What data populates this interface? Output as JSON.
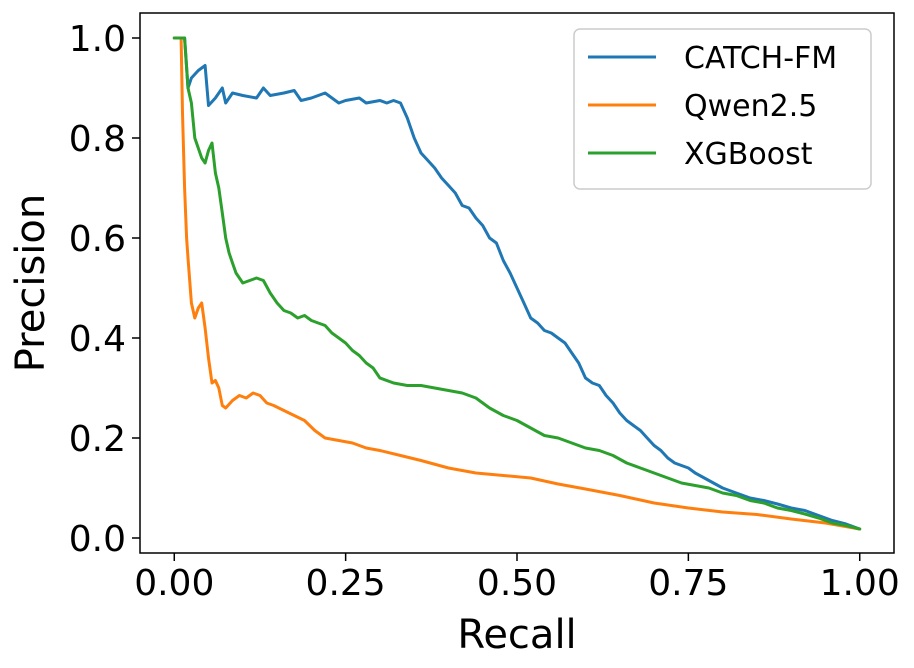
{
  "chart_data": {
    "type": "line",
    "xlabel": "Recall",
    "ylabel": "Precision",
    "xlim": [
      -0.05,
      1.05
    ],
    "ylim": [
      -0.03,
      1.05
    ],
    "xticks": [
      0.0,
      0.25,
      0.5,
      0.75,
      1.0
    ],
    "xtick_labels": [
      "0.00",
      "0.25",
      "0.50",
      "0.75",
      "1.00"
    ],
    "yticks": [
      0.0,
      0.2,
      0.4,
      0.6,
      0.8,
      1.0
    ],
    "ytick_labels": [
      "0.0",
      "0.2",
      "0.4",
      "0.6",
      "0.8",
      "1.0"
    ],
    "grid": false,
    "legend_position": "top-right",
    "series": [
      {
        "name": "CATCH-FM",
        "color": "#1f77b4",
        "x": [
          0.0,
          0.01,
          0.015,
          0.02,
          0.025,
          0.035,
          0.045,
          0.05,
          0.06,
          0.07,
          0.075,
          0.085,
          0.1,
          0.12,
          0.13,
          0.14,
          0.16,
          0.175,
          0.185,
          0.2,
          0.22,
          0.24,
          0.25,
          0.27,
          0.28,
          0.3,
          0.31,
          0.32,
          0.33,
          0.34,
          0.35,
          0.36,
          0.37,
          0.38,
          0.39,
          0.4,
          0.41,
          0.42,
          0.43,
          0.44,
          0.45,
          0.46,
          0.47,
          0.48,
          0.49,
          0.5,
          0.51,
          0.52,
          0.53,
          0.54,
          0.55,
          0.56,
          0.57,
          0.58,
          0.59,
          0.6,
          0.61,
          0.62,
          0.63,
          0.64,
          0.65,
          0.66,
          0.67,
          0.68,
          0.69,
          0.7,
          0.71,
          0.72,
          0.73,
          0.74,
          0.75,
          0.76,
          0.78,
          0.8,
          0.82,
          0.84,
          0.86,
          0.88,
          0.9,
          0.92,
          0.94,
          0.96,
          0.98,
          1.0
        ],
        "y": [
          1.0,
          1.0,
          1.0,
          0.9,
          0.92,
          0.935,
          0.945,
          0.865,
          0.88,
          0.9,
          0.87,
          0.89,
          0.885,
          0.88,
          0.9,
          0.885,
          0.89,
          0.895,
          0.875,
          0.88,
          0.89,
          0.87,
          0.875,
          0.88,
          0.87,
          0.875,
          0.87,
          0.875,
          0.87,
          0.84,
          0.8,
          0.77,
          0.755,
          0.74,
          0.72,
          0.705,
          0.69,
          0.665,
          0.66,
          0.64,
          0.625,
          0.6,
          0.59,
          0.555,
          0.53,
          0.5,
          0.47,
          0.44,
          0.43,
          0.415,
          0.41,
          0.4,
          0.39,
          0.37,
          0.35,
          0.32,
          0.31,
          0.305,
          0.285,
          0.27,
          0.25,
          0.235,
          0.225,
          0.215,
          0.2,
          0.185,
          0.175,
          0.16,
          0.15,
          0.145,
          0.14,
          0.13,
          0.115,
          0.1,
          0.09,
          0.08,
          0.075,
          0.068,
          0.06,
          0.055,
          0.045,
          0.035,
          0.028,
          0.018
        ]
      },
      {
        "name": "Qwen2.5",
        "color": "#ff7f0e",
        "x": [
          0.0,
          0.01,
          0.012,
          0.015,
          0.018,
          0.02,
          0.025,
          0.03,
          0.035,
          0.04,
          0.045,
          0.05,
          0.055,
          0.06,
          0.065,
          0.07,
          0.075,
          0.085,
          0.095,
          0.105,
          0.115,
          0.125,
          0.135,
          0.145,
          0.16,
          0.175,
          0.19,
          0.205,
          0.22,
          0.24,
          0.26,
          0.28,
          0.3,
          0.33,
          0.36,
          0.4,
          0.44,
          0.48,
          0.52,
          0.56,
          0.6,
          0.65,
          0.7,
          0.75,
          0.8,
          0.85,
          0.9,
          0.95,
          1.0
        ],
        "y": [
          1.0,
          1.0,
          0.85,
          0.7,
          0.6,
          0.56,
          0.47,
          0.44,
          0.46,
          0.47,
          0.42,
          0.36,
          0.31,
          0.315,
          0.3,
          0.265,
          0.26,
          0.275,
          0.285,
          0.28,
          0.29,
          0.285,
          0.27,
          0.265,
          0.255,
          0.245,
          0.235,
          0.215,
          0.2,
          0.195,
          0.19,
          0.18,
          0.175,
          0.165,
          0.155,
          0.14,
          0.13,
          0.125,
          0.12,
          0.108,
          0.098,
          0.085,
          0.07,
          0.06,
          0.052,
          0.047,
          0.038,
          0.03,
          0.018
        ]
      },
      {
        "name": "XGBoost",
        "color": "#2ca02c",
        "x": [
          0.0,
          0.01,
          0.015,
          0.02,
          0.025,
          0.03,
          0.04,
          0.045,
          0.05,
          0.055,
          0.06,
          0.065,
          0.07,
          0.075,
          0.08,
          0.085,
          0.09,
          0.1,
          0.11,
          0.12,
          0.13,
          0.14,
          0.15,
          0.16,
          0.17,
          0.18,
          0.19,
          0.2,
          0.21,
          0.22,
          0.23,
          0.24,
          0.25,
          0.26,
          0.27,
          0.28,
          0.29,
          0.3,
          0.32,
          0.34,
          0.36,
          0.38,
          0.4,
          0.42,
          0.44,
          0.46,
          0.48,
          0.5,
          0.52,
          0.54,
          0.56,
          0.58,
          0.6,
          0.62,
          0.64,
          0.66,
          0.68,
          0.7,
          0.72,
          0.74,
          0.76,
          0.78,
          0.8,
          0.82,
          0.84,
          0.86,
          0.88,
          0.9,
          0.92,
          0.94,
          0.96,
          0.98,
          1.0
        ],
        "y": [
          1.0,
          1.0,
          1.0,
          0.9,
          0.87,
          0.8,
          0.76,
          0.75,
          0.775,
          0.79,
          0.73,
          0.7,
          0.65,
          0.6,
          0.57,
          0.55,
          0.53,
          0.51,
          0.515,
          0.52,
          0.515,
          0.49,
          0.47,
          0.455,
          0.45,
          0.44,
          0.445,
          0.435,
          0.43,
          0.425,
          0.41,
          0.4,
          0.39,
          0.375,
          0.365,
          0.35,
          0.34,
          0.32,
          0.31,
          0.305,
          0.305,
          0.3,
          0.295,
          0.29,
          0.28,
          0.26,
          0.245,
          0.235,
          0.22,
          0.205,
          0.2,
          0.19,
          0.18,
          0.175,
          0.165,
          0.15,
          0.14,
          0.13,
          0.12,
          0.11,
          0.105,
          0.1,
          0.09,
          0.085,
          0.075,
          0.07,
          0.06,
          0.055,
          0.048,
          0.04,
          0.03,
          0.025,
          0.018
        ]
      }
    ]
  }
}
